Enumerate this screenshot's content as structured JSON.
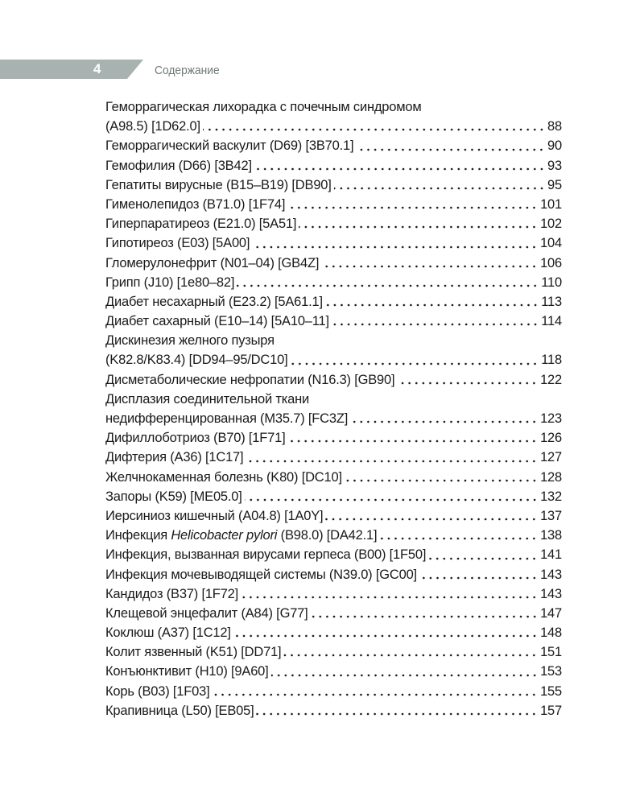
{
  "header": {
    "page_number": "4",
    "section_title": "Содержание",
    "bar_color": "#a8b3b1"
  },
  "toc": [
    {
      "lines": [
        [
          {
            "t": "Геморрагическая лихорадка с почечным синдромом"
          }
        ],
        [
          {
            "t": "(A98.5) [1D62.0]"
          }
        ]
      ],
      "page": "88"
    },
    {
      "lines": [
        [
          {
            "t": "Геморрагический васкулит (D69) [3B70.1]"
          }
        ]
      ],
      "page": "90"
    },
    {
      "lines": [
        [
          {
            "t": "Гемофилия (D66) [3B42]"
          }
        ]
      ],
      "page": "93"
    },
    {
      "lines": [
        [
          {
            "t": "Гепатиты вирусные (B15–B19) [DB90]"
          }
        ]
      ],
      "page": "95"
    },
    {
      "lines": [
        [
          {
            "t": "Гименолепидоз (B71.0) [1F74]"
          }
        ]
      ],
      "page": "101"
    },
    {
      "lines": [
        [
          {
            "t": "Гиперпаратиреоз (E21.0) [5A51]"
          }
        ]
      ],
      "page": "102"
    },
    {
      "lines": [
        [
          {
            "t": "Гипотиреоз (E03) [5A00]"
          }
        ]
      ],
      "page": "104"
    },
    {
      "lines": [
        [
          {
            "t": "Гломерулонефрит (N01–04) [GB4Z]"
          }
        ]
      ],
      "page": "106"
    },
    {
      "lines": [
        [
          {
            "t": "Грипп (J10) [1e80–82]"
          }
        ]
      ],
      "page": "110"
    },
    {
      "lines": [
        [
          {
            "t": "Диабет несахарный (E23.2) [5A61.1]"
          }
        ]
      ],
      "page": "113"
    },
    {
      "lines": [
        [
          {
            "t": "Диабет сахарный (E10–14) [5A10–11]"
          }
        ]
      ],
      "page": "114"
    },
    {
      "lines": [
        [
          {
            "t": "Дискинезия желного пузыря"
          }
        ],
        [
          {
            "t": "(K82.8/K83.4) [DD94–95/DC10]"
          }
        ]
      ],
      "page": "118"
    },
    {
      "lines": [
        [
          {
            "t": "Дисметаболические нефропатии (N16.3) [GB90]"
          }
        ]
      ],
      "page": "122"
    },
    {
      "lines": [
        [
          {
            "t": "Дисплазия соединительной ткани"
          }
        ],
        [
          {
            "t": "недифференцированная (M35.7) [FC3Z]"
          }
        ]
      ],
      "page": "123"
    },
    {
      "lines": [
        [
          {
            "t": "Дифиллоботриоз  (B70) [1F71]"
          }
        ]
      ],
      "page": "126"
    },
    {
      "lines": [
        [
          {
            "t": "Дифтерия (A36) [1C17]"
          }
        ]
      ],
      "page": "127"
    },
    {
      "lines": [
        [
          {
            "t": "Желчнокаменная болезнь (K80) [DC10]"
          }
        ]
      ],
      "page": "128"
    },
    {
      "lines": [
        [
          {
            "t": "Запоры (K59) [ME05.0]"
          }
        ]
      ],
      "page": "132"
    },
    {
      "lines": [
        [
          {
            "t": "Иерсиниоз кишечный (A04.8) [1A0Y]"
          }
        ]
      ],
      "page": "137"
    },
    {
      "lines": [
        [
          {
            "t": "Инфекция "
          },
          {
            "t": "Helicobacter pylori",
            "italic": true
          },
          {
            "t": " (B98.0) [DA42.1]"
          }
        ]
      ],
      "page": "138"
    },
    {
      "lines": [
        [
          {
            "t": "Инфекция, вызванная вирусами герпеса (B00) [1F50]"
          }
        ]
      ],
      "page": "141"
    },
    {
      "lines": [
        [
          {
            "t": "Инфекция мочевыводящей системы (N39.0) [GC00]"
          }
        ]
      ],
      "page": "143"
    },
    {
      "lines": [
        [
          {
            "t": "Кандидоз (B37) [1F72]"
          }
        ]
      ],
      "page": "143"
    },
    {
      "lines": [
        [
          {
            "t": "Клещевой энцефалит (A84) [G77]"
          }
        ]
      ],
      "page": "147"
    },
    {
      "lines": [
        [
          {
            "t": "Коклюш (A37) [1C12]"
          }
        ]
      ],
      "page": "148"
    },
    {
      "lines": [
        [
          {
            "t": "Колит язвенный (K51) [DD71]"
          }
        ]
      ],
      "page": "151"
    },
    {
      "lines": [
        [
          {
            "t": "Конъюнктивит (H10) [9A60]"
          }
        ]
      ],
      "page": "153"
    },
    {
      "lines": [
        [
          {
            "t": "Корь (B03) [1F03]"
          }
        ]
      ],
      "page": "155"
    },
    {
      "lines": [
        [
          {
            "t": "Крапивница (L50) [EB05]"
          }
        ]
      ],
      "page": "157"
    }
  ]
}
